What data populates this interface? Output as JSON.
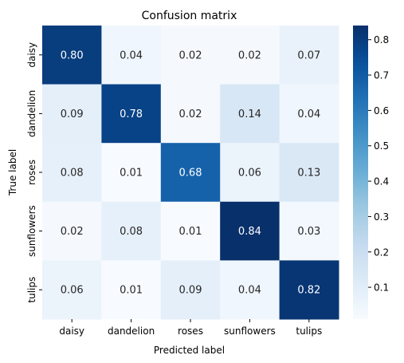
{
  "chart_data": {
    "type": "heatmap",
    "title": "Confusion matrix",
    "xlabel": "Predicted label",
    "ylabel": "True label",
    "x_categories": [
      "daisy",
      "dandelion",
      "roses",
      "sunflowers",
      "tulips"
    ],
    "y_categories": [
      "daisy",
      "dandelion",
      "roses",
      "sunflowers",
      "tulips"
    ],
    "values": [
      [
        0.8,
        0.04,
        0.02,
        0.02,
        0.07
      ],
      [
        0.09,
        0.78,
        0.02,
        0.14,
        0.04
      ],
      [
        0.08,
        0.01,
        0.68,
        0.06,
        0.13
      ],
      [
        0.02,
        0.08,
        0.01,
        0.84,
        0.03
      ],
      [
        0.06,
        0.01,
        0.09,
        0.04,
        0.82
      ]
    ],
    "cell_labels": [
      [
        "0.80",
        "0.04",
        "0.02",
        "0.02",
        "0.07"
      ],
      [
        "0.09",
        "0.78",
        "0.02",
        "0.14",
        "0.04"
      ],
      [
        "0.08",
        "0.01",
        "0.68",
        "0.06",
        "0.13"
      ],
      [
        "0.02",
        "0.08",
        "0.01",
        "0.84",
        "0.03"
      ],
      [
        "0.06",
        "0.01",
        "0.09",
        "0.04",
        "0.82"
      ]
    ],
    "colormap": "Blues",
    "color_range": [
      0.01,
      0.84
    ],
    "colorbar_ticks": [
      "0.1",
      "0.2",
      "0.3",
      "0.4",
      "0.5",
      "0.6",
      "0.7",
      "0.8"
    ],
    "grid": false
  }
}
